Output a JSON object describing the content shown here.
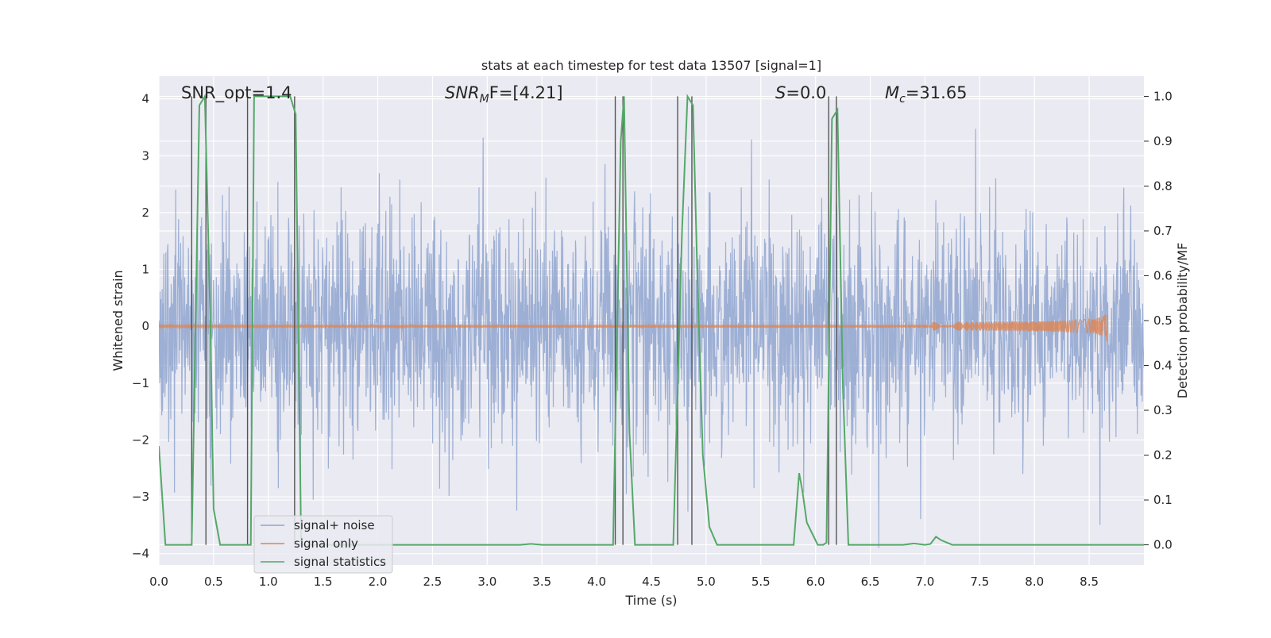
{
  "chart_data": {
    "type": "line",
    "title": "stats at each timestep for test data 13507 [signal=1]",
    "xlabel": "Time (s)",
    "ylabel_left": "Whitened strain",
    "ylabel_right": "Detection probability/MF",
    "xlim": [
      0,
      9.0
    ],
    "ylim_left": [
      -4.2,
      4.4
    ],
    "ylim_right": [
      -0.045,
      1.045
    ],
    "x_ticks": [
      0.0,
      0.5,
      1.0,
      1.5,
      2.0,
      2.5,
      3.0,
      3.5,
      4.0,
      4.5,
      5.0,
      5.5,
      6.0,
      6.5,
      7.0,
      7.5,
      8.0,
      8.5
    ],
    "x_tick_labels": [
      "0.0",
      "0.5",
      "1.0",
      "1.5",
      "2.0",
      "2.5",
      "3.0",
      "3.5",
      "4.0",
      "4.5",
      "5.0",
      "5.5",
      "6.0",
      "6.5",
      "7.0",
      "7.5",
      "8.0",
      "8.5"
    ],
    "y_left_ticks": [
      -4,
      -3,
      -2,
      -1,
      0,
      1,
      2,
      3,
      4
    ],
    "y_left_tick_labels": [
      "−4",
      "−3",
      "−2",
      "−1",
      "0",
      "1",
      "2",
      "3",
      "4"
    ],
    "y_right_ticks": [
      0.0,
      0.1,
      0.2,
      0.3,
      0.4,
      0.5,
      0.6,
      0.7,
      0.8,
      0.9,
      1.0
    ],
    "y_right_tick_labels": [
      "0.0",
      "0.1",
      "0.2",
      "0.3",
      "0.4",
      "0.5",
      "0.6",
      "0.7",
      "0.8",
      "0.9",
      "1.0"
    ],
    "grid": true,
    "legend_position": "lower-left",
    "annotations": {
      "snr_opt": "SNR_opt=1.4",
      "snr_mf_main": "SNR",
      "snr_mf_sub": "M",
      "snr_mf_rest": "F=[4.21]",
      "s_main": "S",
      "s_rest": "=0.0",
      "mc_main": "M",
      "mc_sub": "c",
      "mc_rest": "=31.65"
    },
    "series": [
      {
        "name": "signal+ noise",
        "color": "#8fa5cf",
        "kind": "noise",
        "amplitude_sd": 1.0,
        "x_range": [
          0,
          9.0
        ]
      },
      {
        "name": "signal only",
        "color": "#dd8452",
        "kind": "chirp",
        "x_range": [
          0,
          8.67
        ],
        "peak_time": 8.67,
        "peak_amplitude": 0.33
      },
      {
        "name": "signal statistics",
        "color": "#55a868",
        "axis": "right",
        "x": [
          0.0,
          0.06,
          0.15,
          0.3,
          0.37,
          0.42,
          0.47,
          0.5,
          0.56,
          0.62,
          0.7,
          0.75,
          0.8,
          0.84,
          0.87,
          0.92,
          1.0,
          1.1,
          1.2,
          1.25,
          1.3,
          1.4,
          2.0,
          3.3,
          3.4,
          3.5,
          4.0,
          4.15,
          4.22,
          4.25,
          4.3,
          4.35,
          4.45,
          4.7,
          4.78,
          4.83,
          4.88,
          4.92,
          4.97,
          5.03,
          5.1,
          5.2,
          5.5,
          5.8,
          5.85,
          5.88,
          5.92,
          6.02,
          6.07,
          6.1,
          6.15,
          6.2,
          6.25,
          6.3,
          6.4,
          6.8,
          6.9,
          7.0,
          7.05,
          7.1,
          7.15,
          7.25,
          7.5,
          8.0,
          9.0
        ],
        "values": [
          0.22,
          0.0,
          0.0,
          0.0,
          0.98,
          1.0,
          0.5,
          0.08,
          0.0,
          0.0,
          0.0,
          0.0,
          0.0,
          0.0,
          1.0,
          1.0,
          1.0,
          1.0,
          1.0,
          0.96,
          0.0,
          0.0,
          0.0,
          0.0,
          0.002,
          0.0,
          0.0,
          0.0,
          0.9,
          1.0,
          0.25,
          0.0,
          0.0,
          0.0,
          0.7,
          1.0,
          0.98,
          0.6,
          0.2,
          0.04,
          0.0,
          0.0,
          0.0,
          0.0,
          0.16,
          0.12,
          0.05,
          0.0,
          0.0,
          0.005,
          0.95,
          0.97,
          0.35,
          0.0,
          0.0,
          0.0,
          0.003,
          0.0,
          0.002,
          0.018,
          0.01,
          0.0,
          0.0,
          0.0,
          0.0
        ]
      }
    ],
    "vertical_lines": {
      "color": "#555555",
      "x": [
        0.3,
        0.43,
        0.81,
        1.24,
        4.17,
        4.24,
        4.74,
        4.87,
        6.12,
        6.19
      ]
    }
  }
}
